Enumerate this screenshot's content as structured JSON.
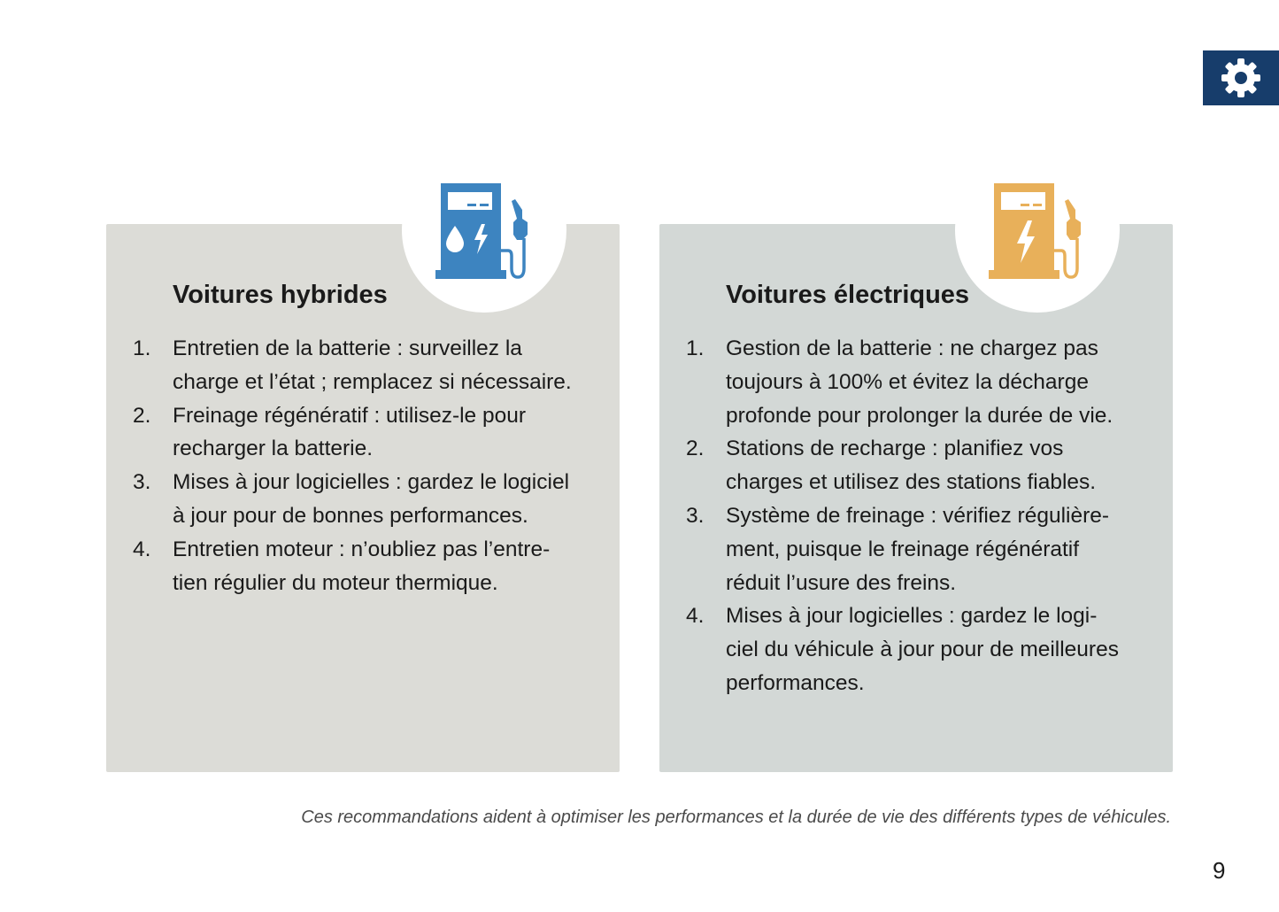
{
  "colors": {
    "gear_bg": "#173d6b",
    "hybrid_icon": "#3d84c0",
    "electric_icon": "#e8b05a",
    "hybrid_card": "#dcdcd7",
    "electric_card": "#d3d8d6"
  },
  "hybrid": {
    "icon": "fuel-pump-drop-bolt-icon",
    "title": "Voitures hybrides",
    "items": [
      {
        "num": "1.",
        "lines": [
          "Entretien de la batterie : surveillez la",
          "charge et l’état ; remplacez si nécessaire."
        ]
      },
      {
        "num": "2.",
        "lines": [
          "Freinage régénératif : utilisez-le pour",
          "recharger la batterie."
        ]
      },
      {
        "num": "3.",
        "lines": [
          "Mises à jour logicielles : gardez le logiciel",
          "à jour pour de bonnes performances."
        ]
      },
      {
        "num": "4.",
        "lines": [
          "Entretien moteur : n’oubliez pas l’entre-",
          "tien régulier du moteur thermique."
        ]
      }
    ]
  },
  "electric": {
    "icon": "charging-station-bolt-icon",
    "title": "Voitures électriques",
    "items": [
      {
        "num": "1.",
        "lines": [
          "Gestion de la batterie : ne chargez pas",
          "toujours à 100% et évitez la décharge",
          "profonde pour prolonger la durée de vie."
        ]
      },
      {
        "num": "2.",
        "lines": [
          "Stations de recharge : planifiez vos",
          "charges et utilisez des stations fiables."
        ]
      },
      {
        "num": "3.",
        "lines": [
          "Système de freinage : vérifiez régulière-",
          "ment, puisque le freinage régénératif",
          "réduit l’usure des freins."
        ]
      },
      {
        "num": "4.",
        "lines": [
          "Mises à jour logicielles : gardez le logi-",
          "ciel du véhicule à jour pour de meilleures",
          "performances."
        ]
      }
    ]
  },
  "caption": "Ces recommandations aident à optimiser les performances et la durée de vie des différents types de véhicules.",
  "page_number": "9"
}
